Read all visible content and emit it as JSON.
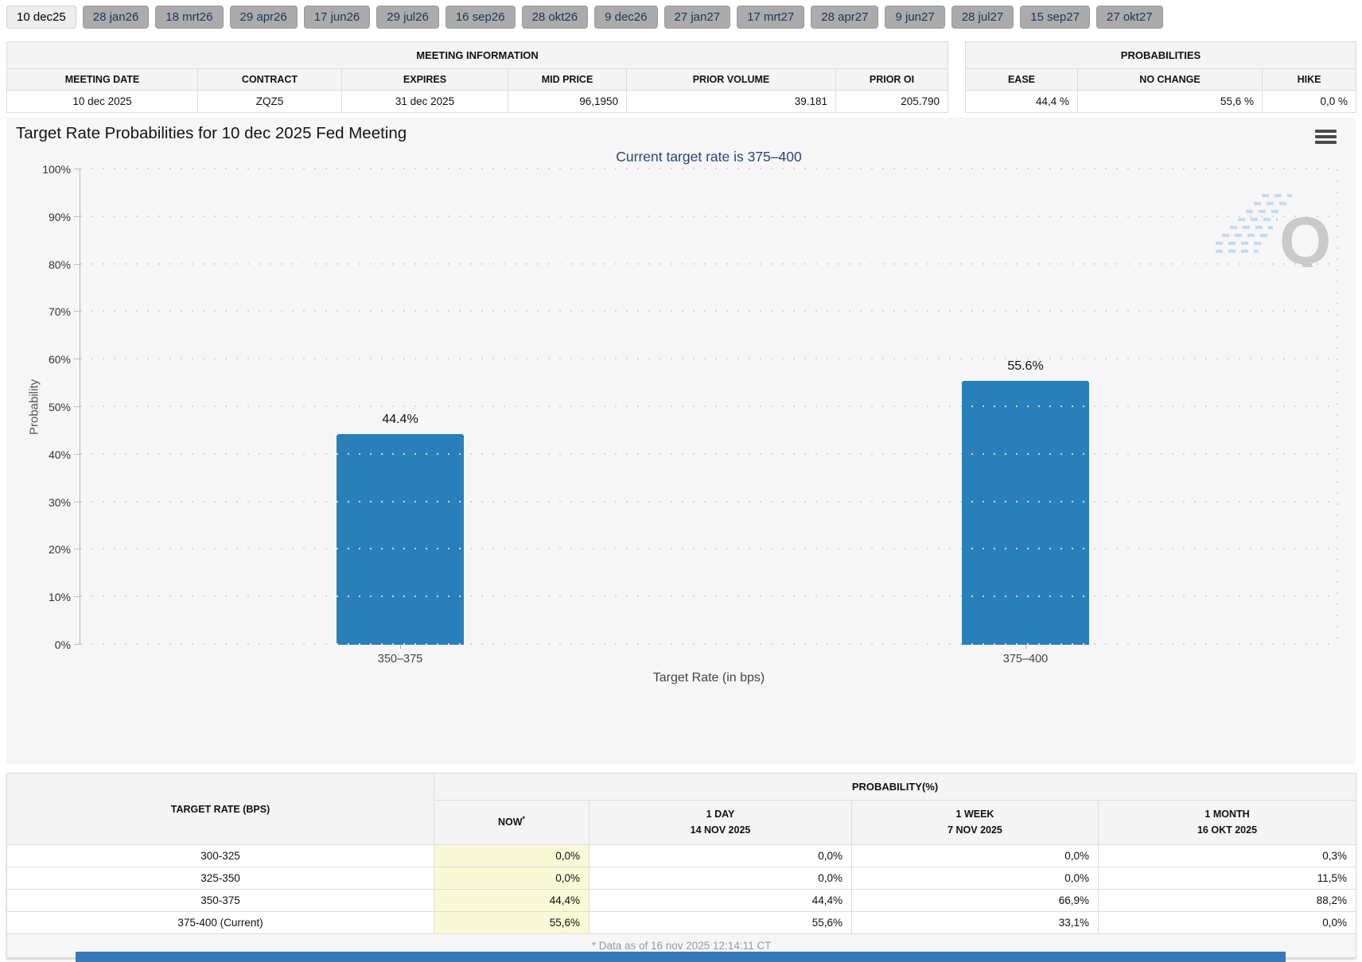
{
  "tabs": [
    {
      "label": "10 dec25",
      "active": true
    },
    {
      "label": "28 jan26",
      "active": false
    },
    {
      "label": "18 mrt26",
      "active": false
    },
    {
      "label": "29 apr26",
      "active": false
    },
    {
      "label": "17 jun26",
      "active": false
    },
    {
      "label": "29 jul26",
      "active": false
    },
    {
      "label": "16 sep26",
      "active": false
    },
    {
      "label": "28 okt26",
      "active": false
    },
    {
      "label": "9 dec26",
      "active": false
    },
    {
      "label": "27 jan27",
      "active": false
    },
    {
      "label": "17 mrt27",
      "active": false
    },
    {
      "label": "28 apr27",
      "active": false
    },
    {
      "label": "9 jun27",
      "active": false
    },
    {
      "label": "28 jul27",
      "active": false
    },
    {
      "label": "15 sep27",
      "active": false
    },
    {
      "label": "27 okt27",
      "active": false
    }
  ],
  "meeting_info": {
    "title": "MEETING INFORMATION",
    "columns": [
      "MEETING DATE",
      "CONTRACT",
      "EXPIRES",
      "MID PRICE",
      "PRIOR VOLUME",
      "PRIOR OI"
    ],
    "row": [
      "10 dec 2025",
      "ZQZ5",
      "31 dec 2025",
      "96,1950",
      "39.181",
      "205.790"
    ]
  },
  "probabilities_panel": {
    "title": "PROBABILITIES",
    "columns": [
      "EASE",
      "NO CHANGE",
      "HIKE"
    ],
    "row": [
      "44,4 %",
      "55,6 %",
      "0,0 %"
    ]
  },
  "chart_data": {
    "type": "bar",
    "title": "Target Rate Probabilities for 10 dec 2025 Fed Meeting",
    "subtitle": "Current target rate is 375–400",
    "categories": [
      "350–375",
      "375–400"
    ],
    "values": [
      44.4,
      55.6
    ],
    "bar_labels": [
      "44.4%",
      "55.6%"
    ],
    "xlabel": "Target Rate (in bps)",
    "ylabel": "Probability",
    "ylim": [
      0,
      100
    ],
    "yticks": [
      "0%",
      "10%",
      "20%",
      "30%",
      "40%",
      "50%",
      "60%",
      "70%",
      "80%",
      "90%",
      "100%"
    ],
    "grid": "dotted-horizontal",
    "legend": "none",
    "bar_color": "#2980b9"
  },
  "watermark": {
    "letter": "Q"
  },
  "bottom_table": {
    "rate_header": "TARGET RATE (BPS)",
    "prob_header": "PROBABILITY(%)",
    "subheaders": [
      {
        "l1": "NOW",
        "sup": "*",
        "l2": ""
      },
      {
        "l1": "1 DAY",
        "l2": "14 NOV 2025"
      },
      {
        "l1": "1 WEEK",
        "l2": "7 NOV 2025"
      },
      {
        "l1": "1 MONTH",
        "l2": "16 OKT 2025"
      }
    ],
    "rows": [
      {
        "rate": "300-325",
        "now": "0,0%",
        "d1": "0,0%",
        "w1": "0,0%",
        "m1": "0,3%"
      },
      {
        "rate": "325-350",
        "now": "0,0%",
        "d1": "0,0%",
        "w1": "0,0%",
        "m1": "11,5%"
      },
      {
        "rate": "350-375",
        "now": "44,4%",
        "d1": "44,4%",
        "w1": "66,9%",
        "m1": "88,2%"
      },
      {
        "rate": "375-400 (Current)",
        "now": "55,6%",
        "d1": "55,6%",
        "w1": "33,1%",
        "m1": "0,0%"
      }
    ],
    "footnote": "* Data as of 16 nov 2025 12:14:11 CT"
  },
  "colors": {
    "bar_blue": "#2980b9",
    "subtitle_navy": "#26467e",
    "tab_inactive": "#ababab",
    "tab_text": "#17395c",
    "now_column_yellow": "#f9f9d6",
    "bottom_bar_blue": "#3a79b7"
  }
}
